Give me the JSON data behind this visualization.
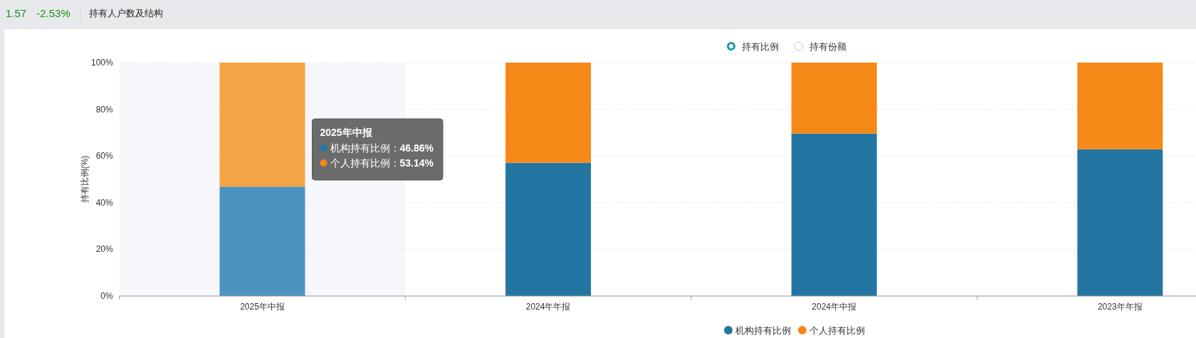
{
  "chart_data": {
    "type": "bar",
    "title": "持有人户数及结构",
    "ylabel": "持有比例(%)",
    "categories": [
      "2025年中报",
      "2024年年报",
      "2024年中报",
      "2023年年报"
    ],
    "stacked": true,
    "series": [
      {
        "name": "机构持有比例",
        "color": "#2376a2",
        "colors": [
          "#4b94bf",
          "#2376a2",
          "#2376a2",
          "#2376a2"
        ],
        "values": [
          46.86,
          57.1,
          69.6,
          62.9
        ]
      },
      {
        "name": "个人持有比例",
        "color": "#f68817",
        "colors": [
          "#f5a445",
          "#f68817",
          "#f68817",
          "#f68817"
        ],
        "values": [
          53.14,
          42.9,
          30.4,
          37.1
        ]
      }
    ],
    "ylim": [
      0,
      100
    ],
    "yticks": [
      {
        "value": 0,
        "label": "0%"
      },
      {
        "value": 20,
        "label": "20%"
      },
      {
        "value": 40,
        "label": "40%"
      },
      {
        "value": 60,
        "label": "60%"
      },
      {
        "value": 80,
        "label": "80%"
      },
      {
        "value": 100,
        "label": "100%"
      }
    ],
    "grid": "y",
    "legend": "bottom",
    "bands": [
      {
        "axis": "x",
        "from": "2025年中报",
        "to": "2025年中报",
        "color": "#f5f7fb"
      }
    ],
    "annotations": [
      "1.57",
      "-2.53%",
      "持有比例",
      "持有份额",
      "2025年中报",
      "机构持有比例：46.86%",
      "个人持有比例：53.14%"
    ]
  }
}
